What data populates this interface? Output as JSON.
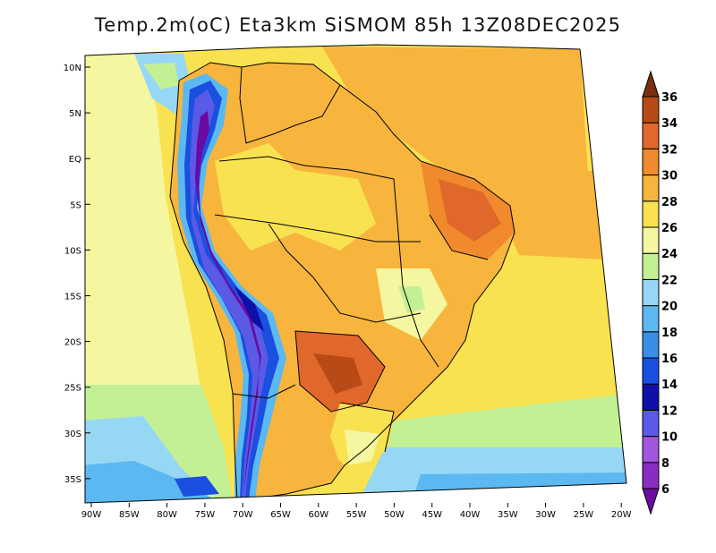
{
  "title": "Temp.2m(oC) Eta3km SiSMOM 85h 13Z08DEC2025",
  "lat_labels": [
    "10N",
    "5N",
    "EQ",
    "5S",
    "10S",
    "15S",
    "20S",
    "25S",
    "30S",
    "35S"
  ],
  "lon_labels": [
    "90W",
    "85W",
    "80W",
    "75W",
    "70W",
    "65W",
    "60W",
    "55W",
    "50W",
    "45W",
    "40W",
    "35W",
    "30W",
    "25W",
    "20W"
  ],
  "colorbar": {
    "unit": "oC",
    "labels": [
      "6",
      "8",
      "10",
      "12",
      "14",
      "16",
      "18",
      "20",
      "22",
      "24",
      "26",
      "28",
      "30",
      "32",
      "34",
      "36"
    ],
    "colors": [
      "#6a0aa0",
      "#8a2cc4",
      "#a257e0",
      "#5a5ae6",
      "#1010a8",
      "#1a4fe0",
      "#3a8ee8",
      "#5cb8f0",
      "#96d8f4",
      "#c4f095",
      "#f4f6a0",
      "#f8e250",
      "#f7b53e",
      "#f08a2c",
      "#e0682a",
      "#b84a18",
      "#7a2e12"
    ]
  },
  "chart_data": {
    "type": "heatmap",
    "title": "Temp.2m(oC) Eta3km SiSMOM 85h 13Z08DEC2025",
    "variable": "Temp.2m",
    "unit": "oC",
    "model": "Eta3km SiSMOM",
    "forecast_hour": "85h",
    "valid_time": "13Z08DEC2025",
    "lat_range": [
      -37.5,
      11.5
    ],
    "lon_range": [
      -90,
      -20
    ],
    "color_levels": [
      6,
      8,
      10,
      12,
      14,
      16,
      18,
      20,
      22,
      24,
      26,
      28,
      30,
      32,
      34,
      36
    ]
  }
}
